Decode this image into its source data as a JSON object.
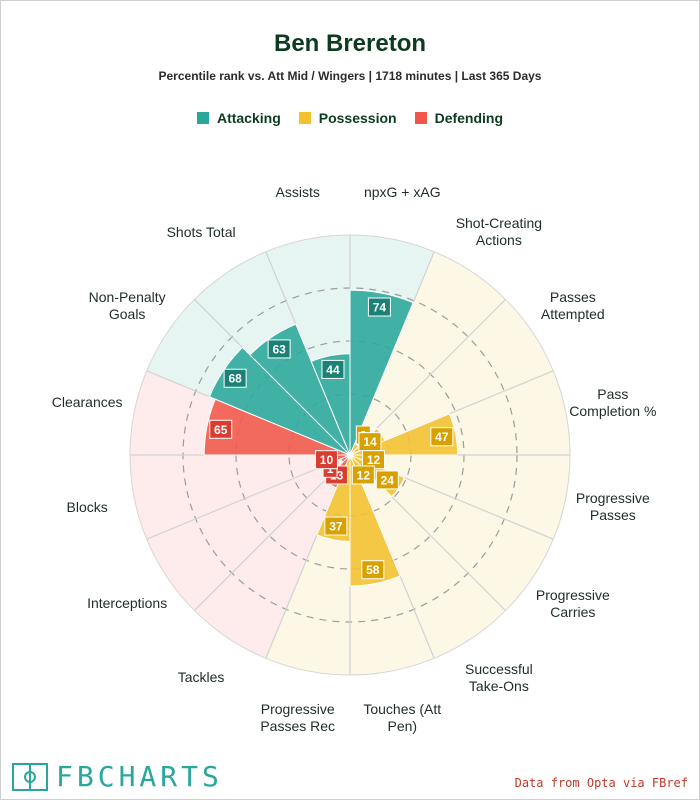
{
  "header": {
    "title": "Ben Brereton",
    "subtitle": "Percentile rank vs. Att Mid / Wingers | 1718 minutes | Last 365 Days"
  },
  "legend": [
    {
      "label": "Attacking",
      "color": "#2aa79b"
    },
    {
      "label": "Possession",
      "color": "#f2c12e"
    },
    {
      "label": "Defending",
      "color": "#f0564a"
    }
  ],
  "chart_data": {
    "type": "radial-bar",
    "scale": "percentile",
    "rlim": [
      0,
      100
    ],
    "grid": true,
    "legend_position": "top",
    "categories": [
      {
        "label": "npxG + xAG",
        "group": "Attacking",
        "value": 74
      },
      {
        "label": "Shot-Creating Actions",
        "group": "Possession",
        "value": 2
      },
      {
        "label": "Passes Attempted",
        "group": "Possession",
        "value": 14
      },
      {
        "label": "Pass Completion %",
        "group": "Possession",
        "value": 47
      },
      {
        "label": "Progressive Passes",
        "group": "Possession",
        "value": 12
      },
      {
        "label": "Progressive Carries",
        "group": "Possession",
        "value": 24
      },
      {
        "label": "Successful Take-Ons",
        "group": "Possession",
        "value": 12
      },
      {
        "label": "Touches (Att Pen)",
        "group": "Possession",
        "value": 58
      },
      {
        "label": "Progressive Passes Rec",
        "group": "Possession",
        "value": 37
      },
      {
        "label": "Tackles",
        "group": "Defending",
        "value": 13
      },
      {
        "label": "Interceptions",
        "group": "Defending",
        "value": 1
      },
      {
        "label": "Blocks",
        "group": "Defending",
        "value": 10
      },
      {
        "label": "Clearances",
        "group": "Defending",
        "value": 65
      },
      {
        "label": "Non-Penalty Goals",
        "group": "Attacking",
        "value": 68
      },
      {
        "label": "Shots Total",
        "group": "Attacking",
        "value": 63
      },
      {
        "label": "Assists",
        "group": "Attacking",
        "value": 44
      }
    ],
    "axis_labels": [
      {
        "lines": [
          "npxG + xAG"
        ]
      },
      {
        "lines": [
          "Shot-Creating",
          "Actions"
        ]
      },
      {
        "lines": [
          "Passes",
          "Attempted"
        ]
      },
      {
        "lines": [
          "Pass",
          "Completion %"
        ]
      },
      {
        "lines": [
          "Progressive",
          "Passes"
        ]
      },
      {
        "lines": [
          "Progressive",
          "Carries"
        ]
      },
      {
        "lines": [
          "Successful",
          "Take-Ons"
        ]
      },
      {
        "lines": [
          "Touches (Att",
          "Pen)"
        ]
      },
      {
        "lines": [
          "Progressive",
          "Passes Rec"
        ]
      },
      {
        "lines": [
          "Tackles"
        ]
      },
      {
        "lines": [
          "Interceptions"
        ]
      },
      {
        "lines": [
          "Blocks"
        ]
      },
      {
        "lines": [
          "Clearances"
        ]
      },
      {
        "lines": [
          "Non-Penalty",
          "Goals"
        ]
      },
      {
        "lines": [
          "Shots Total"
        ]
      },
      {
        "lines": [
          "Assists"
        ]
      }
    ]
  },
  "footer": {
    "brand": "FBCHARTS",
    "source": "Data from Opta via FBref"
  },
  "colors": {
    "Attacking": "#2aa79b",
    "Possession": "#f2c12e",
    "Defending": "#f0564a",
    "Attacking_bg": "#e6f5f2",
    "Possession_bg": "#fdf7e6",
    "Defending_bg": "#fdeceb",
    "Attacking_label": "#1b8177",
    "Possession_label": "#d9a100",
    "Defending_label": "#d93c30"
  }
}
